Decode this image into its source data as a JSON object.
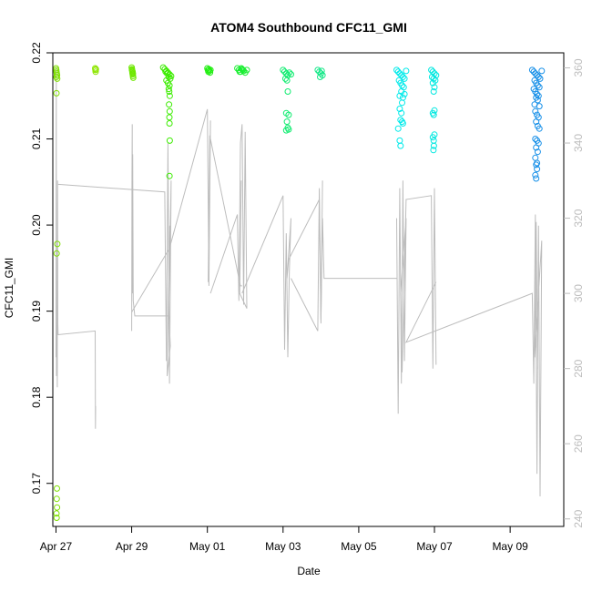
{
  "chart_data": {
    "type": "scatter",
    "title": "ATOM4 Southbound CFC11_GMI",
    "xlabel": "Date",
    "ylabel": "CFC11_GMI",
    "x_range": [
      "2017-04-26T22:00",
      "2017-05-10T10:00"
    ],
    "x_ticks": [
      {
        "date": "2017-04-27",
        "label": "Apr 27"
      },
      {
        "date": "2017-04-29",
        "label": "Apr 29"
      },
      {
        "date": "2017-05-01",
        "label": "May 01"
      },
      {
        "date": "2017-05-03",
        "label": "May 03"
      },
      {
        "date": "2017-05-05",
        "label": "May 05"
      },
      {
        "date": "2017-05-07",
        "label": "May 07"
      },
      {
        "date": "2017-05-09",
        "label": "May 09"
      }
    ],
    "ylim": [
      0.165,
      0.22
    ],
    "y_ticks": [
      0.17,
      0.18,
      0.19,
      0.2,
      0.21,
      0.22
    ],
    "y_tick_labels": [
      "0.17",
      "0.18",
      "0.19",
      "0.20",
      "0.21",
      "0.22"
    ],
    "y2_ylim": [
      238,
      364
    ],
    "y2_ticks": [
      240,
      260,
      280,
      300,
      320,
      340,
      360
    ],
    "y2_tick_labels": [
      "240",
      "260",
      "280",
      "300",
      "320",
      "340",
      "360"
    ],
    "y2_color": "#bdbdbd",
    "grid": false,
    "legend": "none",
    "scatter_groups": [
      {
        "color": "#7fe000",
        "x": [
          "2017-04-27T00:00",
          "2017-04-27T00:10",
          "2017-04-27T00:20",
          "2017-04-27T00:30",
          "2017-04-27T00:40",
          "2017-04-27T00:15",
          "2017-04-27T00:45",
          "2017-04-27T00:20",
          "2017-04-27T00:50",
          "2017-04-27T00:25",
          "2017-04-27T00:35",
          "2017-04-27T00:30",
          "2017-04-27T00:40",
          "2017-04-27T00:20",
          "2017-04-27T00:25"
        ],
        "y": [
          0.2182,
          0.218,
          0.2178,
          0.2176,
          0.2174,
          0.2172,
          0.217,
          0.2153,
          0.1978,
          0.1967,
          0.1694,
          0.1682,
          0.1672,
          0.1665,
          0.166
        ]
      },
      {
        "color": "#8ee600",
        "x": [
          "2017-04-28T00:50",
          "2017-04-28T01:00",
          "2017-04-28T01:10",
          "2017-04-28T01:20"
        ],
        "y": [
          0.2182,
          0.218,
          0.2178,
          0.2181
        ]
      },
      {
        "color": "#6ee800",
        "x": [
          "2017-04-29T00:00",
          "2017-04-29T00:10",
          "2017-04-29T00:20",
          "2017-04-29T00:30",
          "2017-04-29T00:40",
          "2017-04-29T00:50",
          "2017-04-29T01:00",
          "2017-04-29T00:15",
          "2017-04-29T00:35",
          "2017-04-29T00:45"
        ],
        "y": [
          0.2183,
          0.2181,
          0.2179,
          0.2177,
          0.2175,
          0.2173,
          0.2171,
          0.218,
          0.2178,
          0.2176
        ]
      },
      {
        "color": "#3cec00",
        "x": [
          "2017-04-29T20:00",
          "2017-04-29T21:00",
          "2017-04-29T22:00",
          "2017-04-29T23:00",
          "2017-04-30T00:00",
          "2017-04-30T01:00",
          "2017-04-29T21:30",
          "2017-04-29T22:30",
          "2017-04-29T23:30",
          "2017-04-30T00:30",
          "2017-04-29T22:00",
          "2017-04-29T23:00",
          "2017-04-30T00:00",
          "2017-04-29T23:30",
          "2017-04-29T23:50",
          "2017-04-30T00:10",
          "2017-04-29T23:40",
          "2017-04-30T00:05",
          "2017-04-29T23:55",
          "2017-04-30T00:00",
          "2017-04-30T00:10",
          "2017-04-30T00:00"
        ],
        "y": [
          0.2183,
          0.2181,
          0.2179,
          0.2177,
          0.2175,
          0.2173,
          0.2178,
          0.2176,
          0.2172,
          0.217,
          0.2168,
          0.2165,
          0.2162,
          0.2158,
          0.2155,
          0.215,
          0.214,
          0.2132,
          0.2125,
          0.2118,
          0.2098,
          0.2057
        ]
      },
      {
        "color": "#20ee10",
        "x": [
          "2017-05-01T00:00",
          "2017-05-01T00:20",
          "2017-05-01T00:40",
          "2017-05-01T01:00",
          "2017-05-01T01:20",
          "2017-05-01T01:40",
          "2017-05-01T02:00"
        ],
        "y": [
          0.2182,
          0.218,
          0.2178,
          0.2181,
          0.2179,
          0.2177,
          0.218
        ]
      },
      {
        "color": "#18ee30",
        "x": [
          "2017-05-01T19:00",
          "2017-05-01T20:00",
          "2017-05-01T21:00",
          "2017-05-01T22:00",
          "2017-05-01T23:00",
          "2017-05-02T00:00",
          "2017-05-02T01:00",
          "2017-05-01T20:30",
          "2017-05-01T21:30",
          "2017-05-01T22:30"
        ],
        "y": [
          0.2182,
          0.218,
          0.2178,
          0.2181,
          0.2179,
          0.2177,
          0.218,
          0.2178,
          0.2182,
          0.218
        ]
      },
      {
        "color": "#10ec70",
        "x": [
          "2017-05-03T00:00",
          "2017-05-03T01:00",
          "2017-05-03T02:00",
          "2017-05-03T03:00",
          "2017-05-03T04:00",
          "2017-05-03T05:00",
          "2017-05-03T01:30",
          "2017-05-03T02:30",
          "2017-05-03T03:00",
          "2017-05-03T02:00",
          "2017-05-03T03:30",
          "2017-05-03T02:30",
          "2017-05-03T03:00",
          "2017-05-03T02:00",
          "2017-05-03T03:30"
        ],
        "y": [
          0.218,
          0.2178,
          0.2176,
          0.2174,
          0.2177,
          0.2175,
          0.217,
          0.2168,
          0.2155,
          0.213,
          0.2128,
          0.212,
          0.2113,
          0.211,
          0.2111
        ]
      },
      {
        "color": "#14e888",
        "x": [
          "2017-05-03T22:00",
          "2017-05-03T23:00",
          "2017-05-04T00:00",
          "2017-05-04T01:00",
          "2017-05-03T23:30",
          "2017-05-04T00:30"
        ],
        "y": [
          0.218,
          0.2178,
          0.2176,
          0.2174,
          0.2172,
          0.2179
        ]
      },
      {
        "color": "#00eaea",
        "x": [
          "2017-05-06T00:00",
          "2017-05-06T01:00",
          "2017-05-06T02:00",
          "2017-05-06T03:00",
          "2017-05-06T04:00",
          "2017-05-06T05:00",
          "2017-05-06T06:00",
          "2017-05-06T01:30",
          "2017-05-06T02:30",
          "2017-05-06T03:30",
          "2017-05-06T04:30",
          "2017-05-06T03:00",
          "2017-05-06T05:00",
          "2017-05-06T02:00",
          "2017-05-06T04:00",
          "2017-05-06T03:30",
          "2017-05-06T02:00",
          "2017-05-06T03:00",
          "2017-05-06T02:30",
          "2017-05-06T03:30",
          "2017-05-06T04:00",
          "2017-05-06T01:00",
          "2017-05-06T02:00",
          "2017-05-06T02:30"
        ],
        "y": [
          0.218,
          0.2178,
          0.2176,
          0.2174,
          0.2172,
          0.217,
          0.2179,
          0.2168,
          0.2165,
          0.2162,
          0.216,
          0.2155,
          0.2152,
          0.215,
          0.2148,
          0.2142,
          0.2135,
          0.213,
          0.2122,
          0.212,
          0.2118,
          0.2112,
          0.2098,
          0.2092
        ]
      },
      {
        "color": "#00e8e0",
        "x": [
          "2017-05-06T22:00",
          "2017-05-06T23:00",
          "2017-05-07T00:00",
          "2017-05-07T01:00",
          "2017-05-06T22:30",
          "2017-05-06T23:30",
          "2017-05-07T00:30",
          "2017-05-06T23:00",
          "2017-05-07T00:00",
          "2017-05-06T23:30",
          "2017-05-07T00:00",
          "2017-05-06T23:00",
          "2017-05-06T23:30",
          "2017-05-07T00:00",
          "2017-05-06T23:00",
          "2017-05-06T23:30",
          "2017-05-06T23:40",
          "2017-05-06T23:20"
        ],
        "y": [
          0.218,
          0.2178,
          0.2176,
          0.2174,
          0.2172,
          0.217,
          0.2168,
          0.2165,
          0.216,
          0.2155,
          0.2133,
          0.213,
          0.2128,
          0.2105,
          0.2102,
          0.2098,
          0.2092,
          0.2087
        ]
      },
      {
        "color": "#1890e8",
        "x": [
          "2017-05-09T14:00",
          "2017-05-09T15:00",
          "2017-05-09T16:00",
          "2017-05-09T17:00",
          "2017-05-09T18:00",
          "2017-05-09T19:00",
          "2017-05-09T20:00",
          "2017-05-09T15:30",
          "2017-05-09T16:30",
          "2017-05-09T17:30",
          "2017-05-09T18:30",
          "2017-05-09T15:00",
          "2017-05-09T16:00",
          "2017-05-09T17:00",
          "2017-05-09T18:00",
          "2017-05-09T16:30",
          "2017-05-09T17:30",
          "2017-05-09T15:30",
          "2017-05-09T18:30",
          "2017-05-09T16:00",
          "2017-05-09T17:00",
          "2017-05-09T18:00",
          "2017-05-09T16:30",
          "2017-05-09T17:30",
          "2017-05-09T18:30",
          "2017-05-09T16:00",
          "2017-05-09T17:00",
          "2017-05-09T18:00",
          "2017-05-09T16:30",
          "2017-05-09T17:30",
          "2017-05-09T16:00",
          "2017-05-09T17:00",
          "2017-05-09T16:30",
          "2017-05-09T17:00",
          "2017-05-09T16:00",
          "2017-05-09T16:30"
        ],
        "y": [
          0.218,
          0.2178,
          0.2176,
          0.2174,
          0.2172,
          0.217,
          0.2179,
          0.2168,
          0.2165,
          0.2162,
          0.216,
          0.2158,
          0.2155,
          0.2152,
          0.215,
          0.2148,
          0.2145,
          0.214,
          0.2138,
          0.2132,
          0.2128,
          0.2125,
          0.212,
          0.2115,
          0.2112,
          0.21,
          0.2098,
          0.2095,
          0.209,
          0.2085,
          0.2078,
          0.2072,
          0.207,
          0.2065,
          0.2058,
          0.2054
        ]
      }
    ],
    "line_series": {
      "color": "#bdbdbd",
      "segments": [
        {
          "x": [
            "2017-04-27T00:00",
            "2017-04-27T00:10",
            "2017-04-27T00:20",
            "2017-04-27T00:30",
            "2017-04-27T00:40",
            "2017-04-27T00:50",
            "2017-04-27T01:00",
            "2017-04-27T01:10",
            "2017-04-27T01:20",
            "2017-04-28T00:50",
            "2017-04-28T01:00",
            "2017-04-28T01:10"
          ],
          "y": [
            283,
            360,
            278,
            288,
            290,
            275,
            330,
            292,
            289,
            290,
            264,
            270
          ]
        },
        {
          "x": [
            "2017-04-27T01:20",
            "2017-04-29T21:00",
            "2017-04-29T22:00",
            "2017-04-29T23:00",
            "2017-04-30T00:00",
            "2017-04-30T01:00",
            "2017-04-29T23:30",
            "2017-04-30T00:30",
            "2017-04-29T22:30",
            "2017-04-30T00:10"
          ],
          "y": [
            329,
            327,
            282,
            340,
            276,
            330,
            296,
            286,
            278,
            318
          ]
        },
        {
          "x": [
            "2017-04-29T00:00",
            "2017-04-29T00:10",
            "2017-04-29T00:20",
            "2017-04-29T00:30",
            "2017-04-29T00:40",
            "2017-04-29T01:00",
            "2017-04-29T02:00",
            "2017-04-29T22:00",
            "2017-04-30T00:00"
          ],
          "y": [
            290,
            330,
            345,
            300,
            337,
            298,
            294,
            294,
            294
          ]
        },
        {
          "x": [
            "2017-04-29T00:00",
            "2017-04-30T00:00",
            "2017-05-01T00:00",
            "2017-05-01T01:00",
            "2017-05-01T02:00",
            "2017-05-01T00:30",
            "2017-05-01T01:30",
            "2017-05-01T21:00",
            "2017-05-01T22:00"
          ],
          "y": [
            295,
            312,
            349,
            302,
            346,
            303,
            342,
            302,
            302
          ]
        },
        {
          "x": [
            "2017-05-01T02:00",
            "2017-05-01T19:00",
            "2017-05-01T20:00",
            "2017-05-01T21:00",
            "2017-05-01T22:00",
            "2017-05-01T23:00",
            "2017-05-02T00:00",
            "2017-05-02T01:00",
            "2017-05-01T20:30",
            "2017-05-01T21:30"
          ],
          "y": [
            300,
            321,
            298,
            340,
            345,
            297,
            343,
            296,
            300,
            330
          ]
        },
        {
          "x": [
            "2017-05-01T22:00",
            "2017-05-03T00:00",
            "2017-05-03T01:00",
            "2017-05-03T02:00",
            "2017-05-03T03:00",
            "2017-05-03T04:00",
            "2017-05-03T05:00",
            "2017-05-03T02:30",
            "2017-05-03T03:30",
            "2017-05-03T23:00",
            "2017-05-04T00:00",
            "2017-05-04T01:00"
          ],
          "y": [
            300,
            326,
            285,
            316,
            283,
            306,
            320,
            304,
            309,
            325,
            292,
            330
          ]
        },
        {
          "x": [
            "2017-05-03T05:00",
            "2017-05-03T22:00",
            "2017-05-03T23:00",
            "2017-05-04T00:00",
            "2017-05-04T01:00",
            "2017-05-04T02:00",
            "2017-05-06T00:00"
          ],
          "y": [
            304,
            290,
            328,
            293,
            320,
            304,
            304
          ]
        },
        {
          "x": [
            "2017-05-06T00:00",
            "2017-05-06T01:00",
            "2017-05-06T02:00",
            "2017-05-06T03:00",
            "2017-05-06T04:00",
            "2017-05-06T05:00",
            "2017-05-06T06:00",
            "2017-05-06T02:30",
            "2017-05-06T03:30",
            "2017-05-06T06:00",
            "2017-05-06T22:00",
            "2017-05-06T23:00",
            "2017-05-07T00:00",
            "2017-05-07T01:00"
          ],
          "y": [
            320,
            268,
            328,
            276,
            330,
            282,
            320,
            300,
            279,
            325,
            326,
            280,
            328,
            281
          ]
        },
        {
          "x": [
            "2017-05-07T01:00",
            "2017-05-06T06:00",
            "2017-05-09T14:00",
            "2017-05-09T15:00",
            "2017-05-09T16:00",
            "2017-05-09T17:00",
            "2017-05-09T18:00",
            "2017-05-09T19:00",
            "2017-05-09T20:00",
            "2017-05-09T15:30",
            "2017-05-09T16:30",
            "2017-05-09T17:30"
          ],
          "y": [
            303,
            287,
            300,
            276,
            321,
            252,
            318,
            246,
            314,
            283,
            319,
            280
          ]
        }
      ]
    }
  }
}
